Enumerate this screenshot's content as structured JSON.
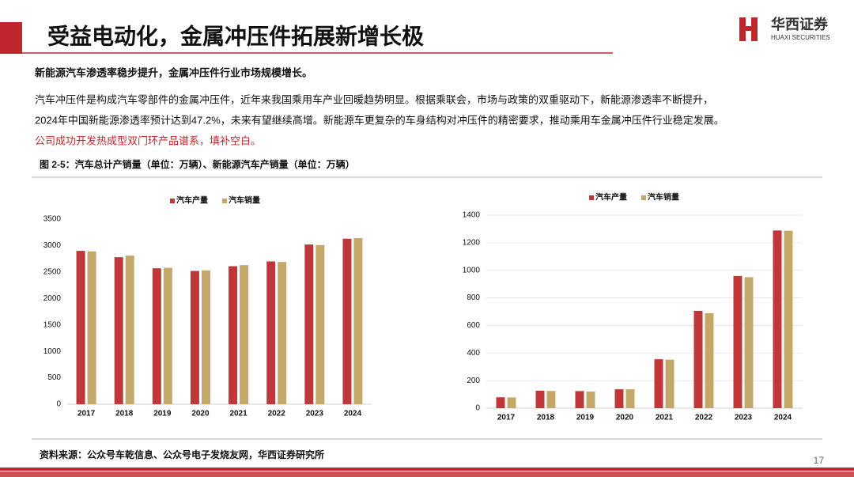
{
  "header": {
    "title": "受益电动化，金属冲压件拓展新增长极",
    "logo_cn": "华西证券",
    "logo_en": "HUAXI SECURITIES"
  },
  "body": {
    "lead": "新能源汽车渗透率稳步提升，金属冲压件行业市场规模增长。",
    "lines": [
      "汽车冲压件是构成汽车零部件的金属冲压件，近年来我国乘用车产业回暖趋势明显。根据乘联会，市场与政策的双重驱动下，新能源渗透率不断提升，",
      "2024年中国新能源渗透率预计达到47.2%，未来有望继续高增。新能源车更复杂的车身结构对冲压件的精密要求，推动乘用车金属冲压件行业稳定发展。"
    ],
    "highlight": "公司成功开发热成型双门环产品谱系，填补空白。",
    "caption": "图 2-5：汽车总计产销量（单位：万辆）、新能源汽车产销量（单位：万辆）",
    "source": "资料来源：公众号车乾信息、公众号电子发烧友网，华西证券研究所",
    "page": "17"
  },
  "chart_data": [
    {
      "type": "bar",
      "categories": [
        "2017",
        "2018",
        "2019",
        "2020",
        "2021",
        "2022",
        "2023",
        "2024"
      ],
      "series": [
        {
          "name": "汽车产量",
          "color": "#c0373a",
          "values": [
            2900,
            2780,
            2570,
            2520,
            2610,
            2700,
            3020,
            3130
          ]
        },
        {
          "name": "汽车销量",
          "color": "#c4a86a",
          "values": [
            2890,
            2810,
            2580,
            2530,
            2630,
            2690,
            3010,
            3140
          ]
        }
      ],
      "ylim": [
        0,
        3500
      ],
      "yticks": [
        0,
        500,
        1000,
        1500,
        2000,
        2500,
        3000,
        3500
      ],
      "grid": false
    },
    {
      "type": "bar",
      "categories": [
        "2017",
        "2018",
        "2019",
        "2020",
        "2021",
        "2022",
        "2023",
        "2024"
      ],
      "series": [
        {
          "name": "汽车产量",
          "color": "#c0373a",
          "values": [
            79,
            127,
            124,
            137,
            355,
            706,
            959,
            1289
          ]
        },
        {
          "name": "汽车销量",
          "color": "#c4a86a",
          "values": [
            78,
            125,
            121,
            137,
            352,
            689,
            950,
            1287
          ]
        }
      ],
      "ylim": [
        0,
        1400
      ],
      "yticks": [
        0,
        200,
        400,
        600,
        800,
        1000,
        1200,
        1400
      ],
      "grid": true
    }
  ]
}
